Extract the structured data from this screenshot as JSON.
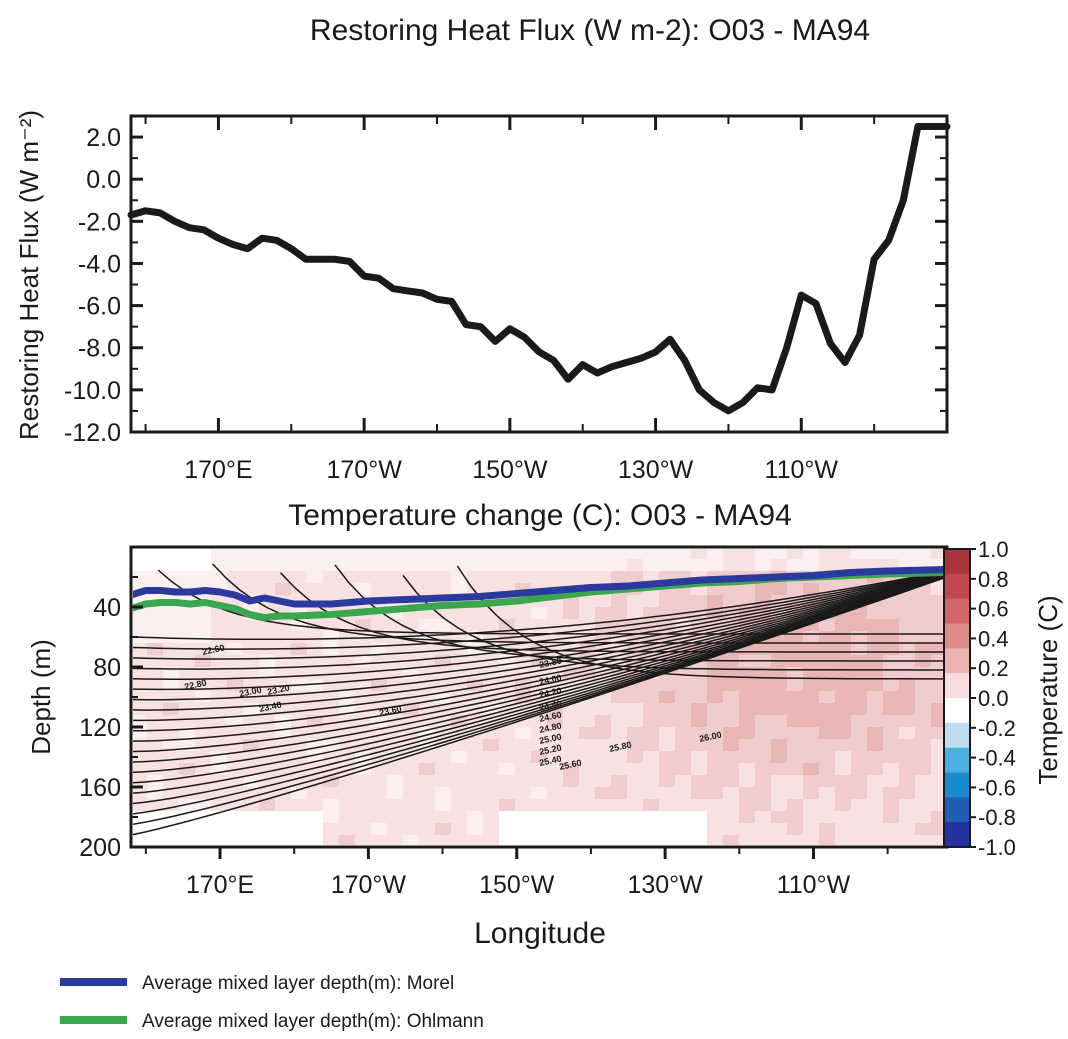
{
  "chart_data": [
    {
      "type": "line",
      "title": "Restoring Heat Flux (W m-2): O03 - MA94",
      "ylabel": "Restoring Heat Flux (W m⁻²)",
      "xlabel": "",
      "x_tick_labels": [
        "170°E",
        "170°W",
        "150°W",
        "130°W",
        "110°W"
      ],
      "x_tick_positions": [
        170,
        190,
        210,
        230,
        250
      ],
      "xlim": [
        158,
        270
      ],
      "ylim": [
        -12,
        3
      ],
      "y_tick_labels": [
        "2.0",
        "0.0",
        "-2.0",
        "-4.0",
        "-6.0",
        "-8.0",
        "-10.0",
        "-12.0"
      ],
      "y_tick_values": [
        2,
        0,
        -2,
        -4,
        -6,
        -8,
        -10,
        -12
      ],
      "grid": false,
      "series": [
        {
          "x": [
            158,
            160,
            162,
            164,
            166,
            168,
            170,
            172,
            174,
            176,
            178,
            180,
            182,
            184,
            186,
            188,
            190,
            192,
            194,
            196,
            198,
            200,
            202,
            204,
            206,
            208,
            210,
            212,
            214,
            216,
            218,
            220,
            222,
            224,
            226,
            228,
            230,
            232,
            234,
            236,
            238,
            240,
            242,
            244,
            246,
            248,
            250,
            252,
            254,
            256,
            258,
            260,
            262,
            264,
            266,
            268,
            270
          ],
          "y": [
            -1.7,
            -1.5,
            -1.6,
            -2.0,
            -2.3,
            -2.4,
            -2.8,
            -3.1,
            -3.3,
            -2.8,
            -2.9,
            -3.3,
            -3.8,
            -3.8,
            -3.8,
            -3.9,
            -4.6,
            -4.7,
            -5.2,
            -5.3,
            -5.4,
            -5.7,
            -5.8,
            -6.9,
            -7.0,
            -7.7,
            -7.1,
            -7.5,
            -8.2,
            -8.6,
            -9.5,
            -8.8,
            -9.2,
            -8.9,
            -8.7,
            -8.5,
            -8.2,
            -7.6,
            -8.6,
            -10.0,
            -10.6,
            -11.0,
            -10.6,
            -9.9,
            -10.0,
            -8.0,
            -5.5,
            -5.9,
            -7.8,
            -8.7,
            -7.4,
            -3.8,
            -2.9,
            -1.0,
            2.5,
            2.5,
            2.5
          ]
        }
      ]
    },
    {
      "type": "heatmap",
      "title": "Temperature change (C): O03 - MA94",
      "xlabel": "Longitude",
      "ylabel": "Depth (m)",
      "x_tick_labels": [
        "170°E",
        "170°W",
        "150°W",
        "130°W",
        "110°W"
      ],
      "x_tick_positions": [
        170,
        190,
        210,
        230,
        250
      ],
      "xlim": [
        158,
        268
      ],
      "ylim": [
        200,
        0
      ],
      "y_tick_labels": [
        "40",
        "80",
        "120",
        "160",
        "200"
      ],
      "y_tick_values": [
        40,
        80,
        120,
        160,
        200
      ],
      "colorbar": {
        "label": "Temperature (C)",
        "tick_labels": [
          "1.0",
          "0.8",
          "0.6",
          "0.4",
          "0.2",
          "0.0",
          "-0.2",
          "-0.4",
          "-0.6",
          "-0.8",
          "-1.0"
        ],
        "colors": [
          "#a9343c",
          "#c1484c",
          "#d06668",
          "#dd8a89",
          "#ebb3b1",
          "#f7dedd",
          "#ffffff",
          "#c0dcf0",
          "#4eb0e0",
          "#1a8ccc",
          "#1e5fb4",
          "#2230a0"
        ]
      },
      "contour_labels": [
        "22.60",
        "22.80",
        "23.00",
        "23.20",
        "23.40",
        "23.60",
        "23.80",
        "24.00",
        "24.20",
        "24.40",
        "24.60",
        "24.80",
        "25.00",
        "25.20",
        "25.40",
        "25.60",
        "25.80",
        "26.00"
      ],
      "series": [
        {
          "name": "Average mixed layer depth(m): Morel",
          "color": "#2b3a9e",
          "x": [
            158,
            160,
            162,
            164,
            166,
            168,
            170,
            172,
            174,
            176,
            178,
            180,
            185,
            190,
            195,
            200,
            205,
            210,
            215,
            220,
            225,
            230,
            235,
            240,
            245,
            250,
            255,
            260,
            268
          ],
          "y": [
            32,
            29,
            29,
            30,
            30,
            29,
            30,
            32,
            36,
            34,
            36,
            38,
            38,
            36,
            35,
            34,
            33,
            31,
            29,
            27,
            26,
            24,
            22,
            21,
            20,
            19,
            17,
            16,
            15
          ]
        },
        {
          "name": "Average mixed layer depth(m): Ohlmann",
          "color": "#3aa64e",
          "x": [
            158,
            160,
            162,
            164,
            166,
            168,
            170,
            172,
            174,
            176,
            178,
            180,
            185,
            190,
            195,
            200,
            205,
            210,
            215,
            220,
            225,
            230,
            235,
            240,
            245,
            250,
            255,
            260,
            268
          ],
          "y": [
            41,
            38,
            37,
            37,
            38,
            37,
            39,
            41,
            45,
            47,
            46,
            46,
            45,
            43,
            41,
            39,
            38,
            36,
            33,
            30,
            28,
            26,
            24,
            23,
            21,
            20,
            19,
            18,
            17
          ]
        }
      ]
    }
  ],
  "legend": {
    "items": [
      {
        "label": "Average mixed layer depth(m): Morel",
        "color": "#2b3a9e"
      },
      {
        "label": "Average mixed layer depth(m): Ohlmann",
        "color": "#3aa64e"
      }
    ]
  }
}
